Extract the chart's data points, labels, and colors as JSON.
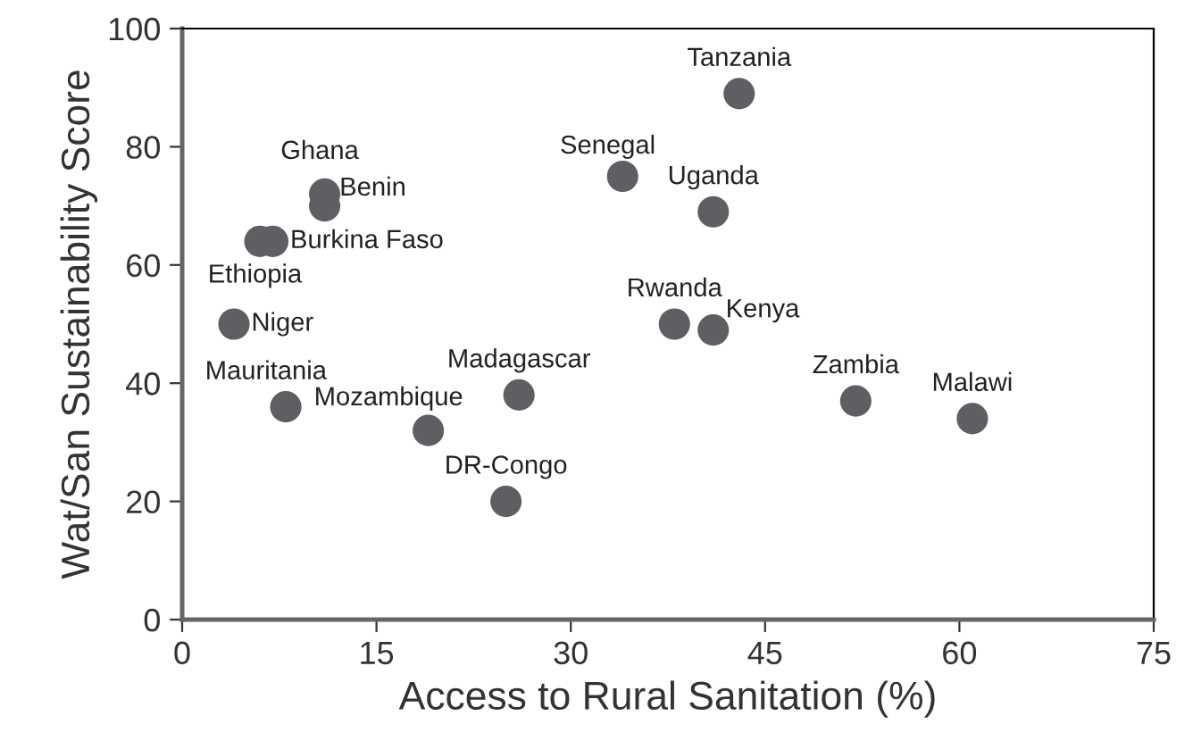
{
  "chart_data": {
    "type": "scatter",
    "xlabel": "Access to Rural Sanitation (%)",
    "ylabel": "Wat/San Sustainability Score",
    "x": [
      43,
      34,
      41,
      11,
      11,
      7,
      6,
      4,
      8,
      19,
      26,
      25,
      38,
      41,
      52,
      61
    ],
    "series": [
      {
        "color": "#5f5f63",
        "values": [
          89,
          75,
          69,
          72,
          70,
          64,
          64,
          50,
          36,
          32,
          38,
          20,
          50,
          49,
          37,
          34
        ]
      }
    ],
    "annotations": [
      {
        "text": "Tanzania",
        "x": 43,
        "y": 89
      },
      {
        "text": "Senegal",
        "x": 34,
        "y": 75
      },
      {
        "text": "Uganda",
        "x": 41,
        "y": 69
      },
      {
        "text": "Ghana",
        "x": 11,
        "y": 72
      },
      {
        "text": "Benin",
        "x": 11,
        "y": 70
      },
      {
        "text": "Burkina Faso",
        "x": 7,
        "y": 64
      },
      {
        "text": "Ethiopia",
        "x": 6,
        "y": 64
      },
      {
        "text": "Niger",
        "x": 4,
        "y": 50
      },
      {
        "text": "Mauritania",
        "x": 8,
        "y": 36
      },
      {
        "text": "Mozambique",
        "x": 19,
        "y": 32
      },
      {
        "text": "Madagascar",
        "x": 26,
        "y": 38
      },
      {
        "text": "DR-Congo",
        "x": 25,
        "y": 20
      },
      {
        "text": "Rwanda",
        "x": 38,
        "y": 50
      },
      {
        "text": "Kenya",
        "x": 41,
        "y": 49
      },
      {
        "text": "Zambia",
        "x": 52,
        "y": 37
      },
      {
        "text": "Malawi",
        "x": 61,
        "y": 34
      }
    ],
    "xlim": [
      0,
      75
    ],
    "ylim": [
      0,
      100
    ],
    "xticks": [
      0,
      15,
      30,
      45,
      60,
      75
    ],
    "yticks": [
      0,
      20,
      40,
      60,
      80,
      100
    ],
    "marker": "circle",
    "grid": false,
    "legend": false
  }
}
